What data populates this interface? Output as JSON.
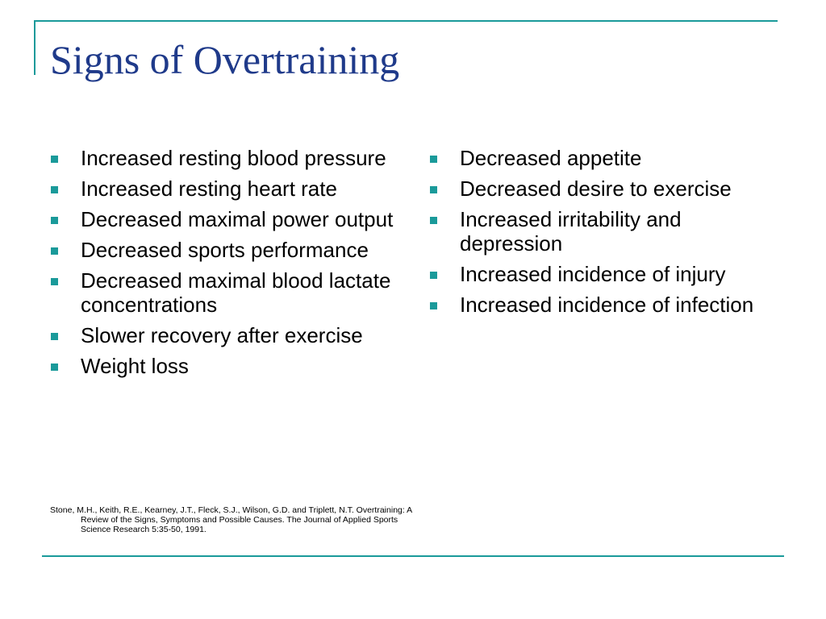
{
  "slide": {
    "title": "Signs of Overtraining",
    "left_items": [
      "Increased resting blood pressure",
      "Increased resting heart rate",
      "Decreased maximal power output",
      "Decreased sports performance",
      "Decreased maximal blood lactate concentrations",
      "Slower recovery after exercise",
      "Weight loss"
    ],
    "right_items": [
      "Decreased appetite",
      "Decreased desire to exercise",
      "Increased irritability and depression",
      "Increased incidence of injury",
      "Increased incidence of infection"
    ],
    "citation": "Stone, M.H., Keith, R.E., Kearney, J.T., Fleck, S.J., Wilson, G.D. and Triplett, N.T. Overtraining: A Review of the Signs, Symptoms and Possible Causes. The Journal of Applied Sports Science Research 5:35-50, 1991."
  },
  "colors": {
    "accent": "#1a9a9a",
    "title": "#1f3a8a"
  },
  "icons": {
    "bullet": "square-bullet-icon"
  }
}
